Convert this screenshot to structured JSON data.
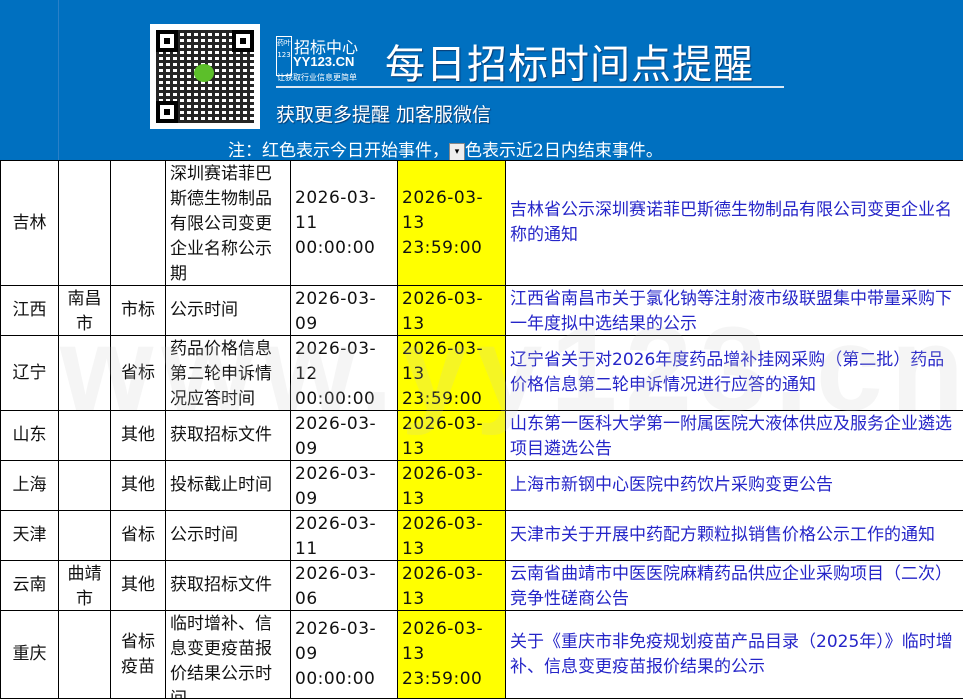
{
  "banner": {
    "logo_mark": "药叶123",
    "logo_name": "招标中心",
    "logo_url": "YY123.CN",
    "logo_tagline": "让获取行业信息更简单",
    "title": "每日招标时间点提醒",
    "subtitle": "获取更多提醒  加客服微信",
    "note_before": "注：红色表示今日开始事件，",
    "note_after": "色表示近2日内结束事件。",
    "bg_color": "#0070c0"
  },
  "watermark": "www.yy123.cn",
  "colors": {
    "end_highlight": "#ffff00",
    "link": "#2525c8"
  },
  "rows": [
    {
      "province": "吉林",
      "city": "",
      "type": "",
      "item": "深圳赛诺菲巴斯德生物制品有限公司变更企业名称公示期",
      "start": "2026-03-11 00:00:00",
      "end": "2026-03-13 23:59:00",
      "title": "吉林省公示深圳赛诺菲巴斯德生物制品有限公司变更企业名称的通知"
    },
    {
      "province": "江西",
      "city": "南昌市",
      "type": "市标",
      "item": "公示时间",
      "start": "2026-03-09 00:00:00",
      "end": "2026-03-13 23:59:00",
      "title": "江西省南昌市关于氯化钠等注射液市级联盟集中带量采购下一年度拟中选结果的公示"
    },
    {
      "province": "辽宁",
      "city": "",
      "type": "省标",
      "item": "药品价格信息第二轮申诉情况应答时间",
      "start": "2026-03-12 00:00:00",
      "end": "2026-03-13 23:59:00",
      "title": "辽宁省关于对2026年度药品增补挂网采购（第二批）药品价格信息第二轮申诉情况进行应答的通知"
    },
    {
      "province": "山东",
      "city": "",
      "type": "其他",
      "item": "获取招标文件",
      "start": "2026-03-09 08:30:00",
      "end": "2026-03-13 17:00:00",
      "title": "山东第一医科大学第一附属医院大液体供应及服务企业遴选项目遴选公告"
    },
    {
      "province": "上海",
      "city": "",
      "type": "其他",
      "item": "投标截止时间",
      "start": "2026-03-09 00:00:00",
      "end": "2026-03-13 09:00:00",
      "title": "上海市新钢中心医院中药饮片采购变更公告"
    },
    {
      "province": "天津",
      "city": "",
      "type": "省标",
      "item": "公示时间",
      "start": "2026-03-11 00:00:00",
      "end": "2026-03-13 17:00:00",
      "title": "天津市关于开展中药配方颗粒拟销售价格公示工作的通知"
    },
    {
      "province": "云南",
      "city": "曲靖市",
      "type": "其他",
      "item": "获取招标文件",
      "start": "2026-03-06 09:00:00",
      "end": "2026-03-13 17:30:00",
      "title": "云南省曲靖市中医医院麻精药品供应企业采购项目（二次）竞争性磋商公告"
    },
    {
      "province": "重庆",
      "city": "",
      "type": "省标疫苗",
      "item": "临时增补、信息变更疫苗报价结果公示时间",
      "start": "2026-03-09 00:00:00",
      "end": "2026-03-13 23:59:00",
      "title": "关于《重庆市非免疫规划疫苗产品目录（2025年）》临时增补、信息变更疫苗报价结果的公示"
    }
  ]
}
